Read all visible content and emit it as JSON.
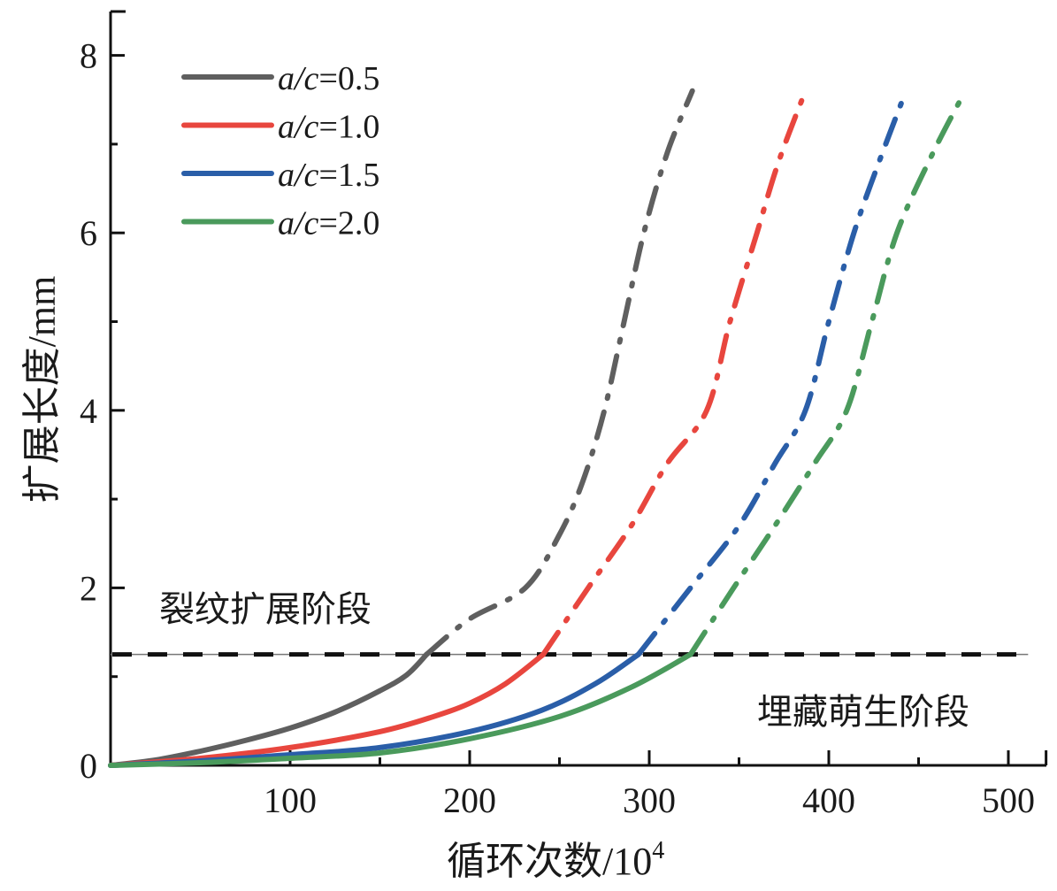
{
  "chart_data": {
    "type": "line",
    "title": "",
    "xlabel": "循环次数/10",
    "xlabel_superscript": "4",
    "ylabel": "扩展长度/mm",
    "xlim": [
      0,
      521
    ],
    "ylim": [
      0,
      8.5
    ],
    "x_ticks": [
      100,
      200,
      300,
      400,
      500
    ],
    "x_tick_labels": [
      "100",
      "200",
      "300",
      "400",
      "500"
    ],
    "x_minor_ticks": [
      50,
      150,
      250,
      350,
      450,
      521
    ],
    "y_ticks": [
      0,
      2,
      4,
      6,
      8
    ],
    "y_tick_labels": [
      "0",
      "2",
      "4",
      "6",
      "8"
    ],
    "y_minor_ticks": [
      1,
      3,
      5,
      7
    ],
    "grid": false,
    "legend_position": "top-left",
    "threshold": {
      "y": 1.25,
      "style": "dashed",
      "color": "#111111"
    },
    "annotations": [
      {
        "text": "裂纹扩展阶段",
        "region": "above-threshold"
      },
      {
        "text": "埋藏萌生阶段",
        "region": "below-threshold"
      }
    ],
    "series": [
      {
        "name": "a/c=0.5",
        "legend_italic": "a/c",
        "legend_value": "=0.5",
        "color": "#5f5f5f",
        "solid": [
          [
            0,
            0
          ],
          [
            25,
            0.06
          ],
          [
            50,
            0.16
          ],
          [
            75,
            0.28
          ],
          [
            100,
            0.42
          ],
          [
            125,
            0.6
          ],
          [
            150,
            0.84
          ],
          [
            165,
            1.02
          ],
          [
            176,
            1.25
          ]
        ],
        "dashdot": [
          [
            176,
            1.25
          ],
          [
            200,
            1.65
          ],
          [
            231,
            2.0
          ],
          [
            250,
            2.6
          ],
          [
            263,
            3.2
          ],
          [
            275,
            4.0
          ],
          [
            286,
            5.0
          ],
          [
            297,
            6.0
          ],
          [
            310,
            6.9
          ],
          [
            324,
            7.6
          ]
        ]
      },
      {
        "name": "a/c=1.0",
        "legend_italic": "a/c",
        "legend_value": "=1.0",
        "color": "#e8463e",
        "solid": [
          [
            0,
            0
          ],
          [
            50,
            0.08
          ],
          [
            100,
            0.2
          ],
          [
            150,
            0.38
          ],
          [
            180,
            0.55
          ],
          [
            200,
            0.7
          ],
          [
            220,
            0.92
          ],
          [
            241,
            1.25
          ]
        ],
        "dashdot": [
          [
            241,
            1.25
          ],
          [
            266,
            2.0
          ],
          [
            290,
            2.7
          ],
          [
            310,
            3.4
          ],
          [
            332,
            4.0
          ],
          [
            345,
            5.0
          ],
          [
            360,
            6.0
          ],
          [
            372,
            6.8
          ],
          [
            387,
            7.6
          ]
        ]
      },
      {
        "name": "a/c=1.5",
        "legend_italic": "a/c",
        "legend_value": "=1.5",
        "color": "#2a5ea8",
        "solid": [
          [
            0,
            0
          ],
          [
            50,
            0.05
          ],
          [
            100,
            0.12
          ],
          [
            150,
            0.2
          ],
          [
            200,
            0.38
          ],
          [
            240,
            0.62
          ],
          [
            270,
            0.92
          ],
          [
            294,
            1.25
          ]
        ],
        "dashdot": [
          [
            294,
            1.25
          ],
          [
            323,
            2.0
          ],
          [
            350,
            2.7
          ],
          [
            370,
            3.4
          ],
          [
            387,
            4.0
          ],
          [
            400,
            5.0
          ],
          [
            414,
            6.0
          ],
          [
            428,
            6.8
          ],
          [
            443,
            7.6
          ]
        ]
      },
      {
        "name": "a/c=2.0",
        "legend_italic": "a/c",
        "legend_value": "=2.0",
        "color": "#4a9a5c",
        "solid": [
          [
            0,
            0
          ],
          [
            50,
            0.03
          ],
          [
            100,
            0.08
          ],
          [
            150,
            0.14
          ],
          [
            200,
            0.3
          ],
          [
            250,
            0.55
          ],
          [
            290,
            0.88
          ],
          [
            323,
            1.25
          ]
        ],
        "dashdot": [
          [
            323,
            1.25
          ],
          [
            347,
            2.0
          ],
          [
            370,
            2.7
          ],
          [
            392,
            3.4
          ],
          [
            410,
            4.0
          ],
          [
            424,
            5.0
          ],
          [
            438,
            6.0
          ],
          [
            458,
            6.9
          ],
          [
            476,
            7.6
          ]
        ]
      }
    ]
  }
}
